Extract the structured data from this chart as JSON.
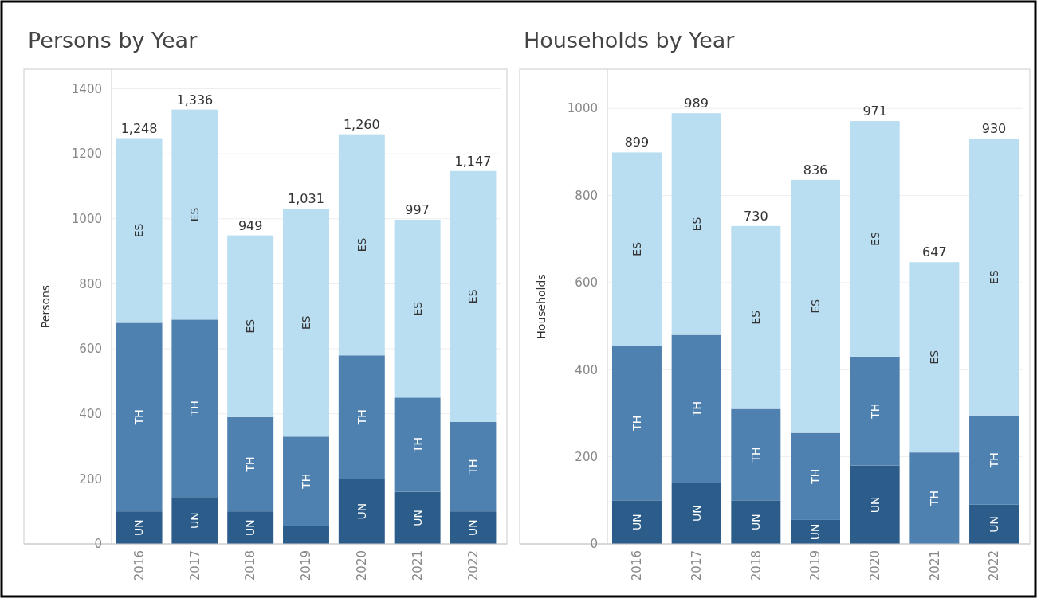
{
  "chart_data": [
    {
      "type": "bar",
      "title": "Persons by Year",
      "ylabel": "Persons",
      "stacked": true,
      "grid": "y",
      "categories": [
        "2016",
        "2017",
        "2018",
        "2019",
        "2020",
        "2021",
        "2022"
      ],
      "series": [
        {
          "name": "UN",
          "color": "#2b5c8a",
          "values": [
            100,
            144,
            100,
            56,
            200,
            160,
            100
          ]
        },
        {
          "name": "TH",
          "color": "#4e81b0",
          "values": [
            580,
            546,
            290,
            274,
            380,
            290,
            275
          ]
        },
        {
          "name": "ES",
          "color": "#b9ddf1",
          "values": [
            568,
            646,
            559,
            701,
            680,
            547,
            772
          ]
        }
      ],
      "totals": [
        "1,248",
        "1,336",
        "949",
        "1,031",
        "1,260",
        "997",
        "1,147"
      ],
      "ylim": [
        0,
        1460
      ],
      "yticks": [
        0,
        200,
        400,
        600,
        800,
        1000,
        1200,
        1400
      ]
    },
    {
      "type": "bar",
      "title": "Households by Year",
      "ylabel": "Households",
      "stacked": true,
      "grid": "y",
      "categories": [
        "2016",
        "2017",
        "2018",
        "2019",
        "2020",
        "2021",
        "2022"
      ],
      "series": [
        {
          "name": "UN",
          "color": "#2b5c8a",
          "values": [
            100,
            140,
            100,
            55,
            180,
            null,
            90
          ]
        },
        {
          "name": "TH",
          "color": "#4e81b0",
          "values": [
            355,
            340,
            210,
            200,
            250,
            210,
            205
          ]
        },
        {
          "name": "ES",
          "color": "#b9ddf1",
          "values": [
            444,
            509,
            420,
            581,
            541,
            437,
            635
          ]
        }
      ],
      "totals": [
        "899",
        "989",
        "730",
        "836",
        "971",
        "647",
        "930"
      ],
      "ylim": [
        0,
        1090
      ],
      "yticks": [
        0,
        200,
        400,
        600,
        800,
        1000
      ]
    }
  ]
}
